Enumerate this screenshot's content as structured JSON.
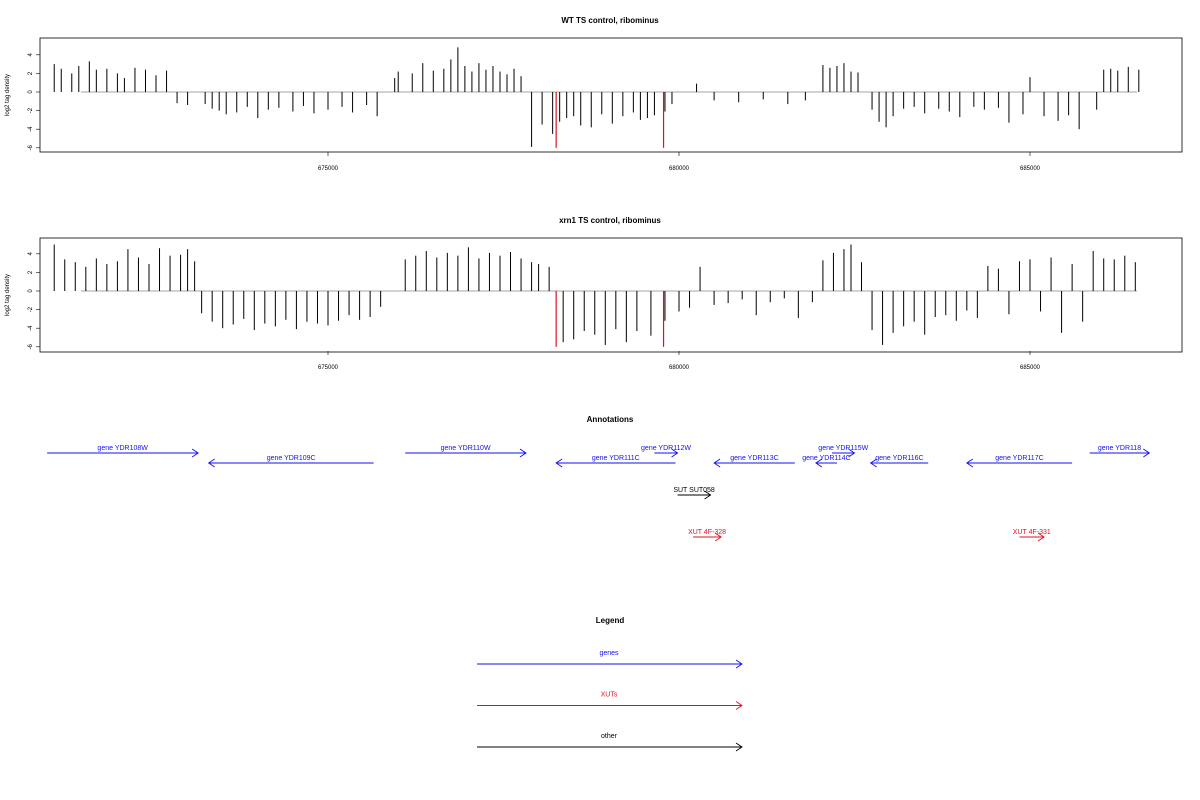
{
  "chart_data": [
    {
      "type": "bar",
      "title": "WT TS control, ribominus",
      "ylabel": "log2 tag density",
      "xlabel": "",
      "xlim": [
        671000,
        686700
      ],
      "ylim": [
        -6,
        5
      ],
      "yticks": [
        -6,
        -4,
        -2,
        0,
        2,
        4
      ],
      "xticks": [
        675000,
        680000,
        685000
      ],
      "xtick_labels": [
        "675000",
        "680000",
        "685000"
      ],
      "grid": false,
      "series": [
        {
          "name": "",
          "color": "#000000",
          "x": [
            671100,
            671200,
            671350,
            671450,
            671600,
            671700,
            671850,
            672000,
            672100,
            672250,
            672400,
            672550,
            672700,
            672850,
            673000,
            673250,
            673350,
            673450,
            673550,
            673700,
            673850,
            674000,
            674150,
            674300,
            674500,
            674650,
            674800,
            675000,
            675200,
            675350,
            675550,
            675700,
            675950,
            676000,
            676200,
            676350,
            676500,
            676650,
            676750,
            676850,
            676950,
            677050,
            677150,
            677250,
            677350,
            677450,
            677550,
            677650,
            677750,
            677900,
            678050,
            678200,
            678300,
            678400,
            678500,
            678600,
            678750,
            678900,
            679050,
            679200,
            679350,
            679450,
            679550,
            679650,
            679800,
            679900,
            680250,
            680500,
            680850,
            681200,
            681550,
            681800,
            682050,
            682150,
            682250,
            682350,
            682450,
            682550,
            682750,
            682850,
            682950,
            683050,
            683200,
            683350,
            683500,
            683700,
            683850,
            684000,
            684200,
            684350,
            684550,
            684700,
            684900,
            685000,
            685200,
            685400,
            685550,
            685700,
            685950,
            686050,
            686150,
            686250,
            686400,
            686550
          ],
          "values": [
            3,
            2.5,
            2,
            2.8,
            3.3,
            2.4,
            2.5,
            2,
            1.5,
            2.6,
            2.4,
            1.8,
            2.3,
            -1.2,
            -1.4,
            -1.3,
            -1.8,
            -2,
            -2.4,
            -2.2,
            -1.6,
            -2.8,
            -1.9,
            -1.7,
            -2.1,
            -1.5,
            -2.3,
            -1.9,
            -1.6,
            -2.2,
            -1.4,
            -2.6,
            1.5,
            2.2,
            2,
            3.1,
            2.3,
            2.5,
            3.5,
            4.8,
            2.8,
            2.2,
            3.1,
            2.4,
            2.8,
            2.2,
            1.9,
            2.5,
            1.7,
            -5.9,
            -3.5,
            -4.5,
            -3.2,
            -2.8,
            -2.6,
            -3.6,
            -3.8,
            -2.4,
            -3.4,
            -2.6,
            -2.2,
            -3,
            -2.8,
            -2.5,
            -2.1,
            -1.3,
            0.9,
            -0.9,
            -1.1,
            -0.8,
            -1.3,
            -0.9,
            2.9,
            2.6,
            2.8,
            3.1,
            2.2,
            2.1,
            -1.9,
            -3.2,
            -3.8,
            -2.6,
            -1.8,
            -1.6,
            -2.3,
            -1.8,
            -2.1,
            -2.7,
            -1.6,
            -1.9,
            -1.7,
            -3.3,
            -2.4,
            1.6,
            -2.6,
            -3.1,
            -2.5,
            -4,
            -1.9,
            2.4,
            2.5,
            2.3,
            2.7,
            2.4
          ]
        },
        {
          "name": "",
          "color": "#e01020",
          "x": [
            678250,
            679780
          ],
          "values": [
            -6,
            -6
          ]
        }
      ]
    },
    {
      "type": "bar",
      "title": "xrn1 TS control, ribominus",
      "ylabel": "log2 tag density",
      "xlabel": "",
      "xlim": [
        671000,
        686700
      ],
      "ylim": [
        -6,
        5
      ],
      "yticks": [
        -6,
        -4,
        -2,
        0,
        2,
        4
      ],
      "xticks": [
        675000,
        680000,
        685000
      ],
      "xtick_labels": [
        "675000",
        "680000",
        "685000"
      ],
      "grid": false,
      "series": [
        {
          "name": "",
          "color": "#000000",
          "x": [
            671100,
            671250,
            671400,
            671550,
            671700,
            671850,
            672000,
            672150,
            672300,
            672450,
            672600,
            672750,
            672900,
            673000,
            673100,
            673200,
            673350,
            673500,
            673650,
            673800,
            673950,
            674100,
            674250,
            674400,
            674550,
            674700,
            674850,
            675000,
            675150,
            675300,
            675450,
            675600,
            675750,
            676100,
            676250,
            676400,
            676550,
            676700,
            676850,
            677000,
            677150,
            677300,
            677450,
            677600,
            677750,
            677900,
            678000,
            678150,
            678350,
            678500,
            678650,
            678800,
            678950,
            679100,
            679250,
            679400,
            679600,
            679800,
            680000,
            680150,
            680300,
            680500,
            680700,
            680900,
            681100,
            681300,
            681500,
            681700,
            681900,
            682050,
            682200,
            682350,
            682450,
            682600,
            682750,
            682900,
            683050,
            683200,
            683350,
            683500,
            683650,
            683800,
            683950,
            684100,
            684250,
            684400,
            684550,
            684700,
            684850,
            685000,
            685150,
            685300,
            685450,
            685600,
            685750,
            685900,
            686050,
            686200,
            686350,
            686500
          ],
          "values": [
            5,
            3.4,
            3.1,
            2.6,
            3.5,
            2.9,
            3.2,
            4.5,
            3.6,
            2.9,
            4.6,
            3.8,
            3.9,
            4.5,
            3.2,
            -2.4,
            -3.3,
            -4,
            -3.6,
            -3,
            -4.2,
            -3.5,
            -3.8,
            -3.1,
            -4.1,
            -3.3,
            -3.5,
            -3.7,
            -3.2,
            -2.6,
            -3.1,
            -2.8,
            -1.7,
            3.4,
            3.8,
            4.3,
            3.6,
            4.1,
            3.8,
            4.7,
            3.5,
            4.1,
            3.8,
            4.2,
            3.5,
            3.1,
            2.9,
            2.6,
            -5.5,
            -5.2,
            -4.3,
            -4.7,
            -5.8,
            -4.1,
            -5.5,
            -4.3,
            -4.8,
            -3.2,
            -2.2,
            -1.8,
            2.6,
            -1.5,
            -1.3,
            -0.9,
            -2.6,
            -1.2,
            -0.8,
            -2.9,
            -1.2,
            3.3,
            4.1,
            4.5,
            5,
            3.1,
            -4.2,
            -5.8,
            -4.5,
            -3.8,
            -3.3,
            -4.7,
            -2.8,
            -2.6,
            -3.2,
            -2.1,
            -2.9,
            2.7,
            2.4,
            -2.5,
            3.2,
            3.4,
            -2.2,
            3.6,
            -4.5,
            2.9,
            -3.3,
            4.3,
            3.5,
            3.4,
            3.8,
            3.1
          ]
        },
        {
          "name": "",
          "color": "#e01020",
          "x": [
            678250,
            679780
          ],
          "values": [
            -6,
            -6
          ]
        }
      ]
    },
    {
      "type": "annotation-track",
      "title": "Annotations",
      "xlim": [
        671000,
        686700
      ],
      "features": [
        {
          "label": "gene YDR108W",
          "type": "gene",
          "strand": "+",
          "start": 671000,
          "end": 673150,
          "row": 0
        },
        {
          "label": "gene YDR109C",
          "type": "gene",
          "strand": "-",
          "start": 673300,
          "end": 675650,
          "row": 1
        },
        {
          "label": "gene YDR110W",
          "type": "gene",
          "strand": "+",
          "start": 676100,
          "end": 677820,
          "row": 0
        },
        {
          "label": "gene YDR111C",
          "type": "gene",
          "strand": "-",
          "start": 678250,
          "end": 679950,
          "row": 1
        },
        {
          "label": "gene YDR112W",
          "type": "gene",
          "strand": "+",
          "start": 679650,
          "end": 679980,
          "row": 0
        },
        {
          "label": "gene YDR113C",
          "type": "gene",
          "strand": "-",
          "start": 680500,
          "end": 681650,
          "row": 1
        },
        {
          "label": "gene YDR114C",
          "type": "gene",
          "strand": "-",
          "start": 681950,
          "end": 682250,
          "row": 1
        },
        {
          "label": "gene YDR115W",
          "type": "gene",
          "strand": "+",
          "start": 682180,
          "end": 682500,
          "row": 0
        },
        {
          "label": "gene YDR116C",
          "type": "gene",
          "strand": "-",
          "start": 682730,
          "end": 683550,
          "row": 1
        },
        {
          "label": "gene YDR117C",
          "type": "gene",
          "strand": "-",
          "start": 684100,
          "end": 685600,
          "row": 1
        },
        {
          "label": "gene YDR118",
          "type": "gene",
          "strand": "+",
          "start": 685850,
          "end": 686700,
          "row": 0
        },
        {
          "label": "SUT SUT058",
          "type": "other",
          "strand": "+",
          "start": 679980,
          "end": 680450,
          "row": 2
        },
        {
          "label": "XUT 4F-328",
          "type": "xut",
          "strand": "+",
          "start": 680200,
          "end": 680600,
          "row": 3
        },
        {
          "label": "XUT 4F-331",
          "type": "xut",
          "strand": "+",
          "start": 684850,
          "end": 685200,
          "row": 3
        }
      ]
    },
    {
      "type": "legend",
      "title": "Legend",
      "entries": [
        {
          "label": "genes",
          "color": "#1010f0"
        },
        {
          "label": "XUTs",
          "color": "#e01020"
        },
        {
          "label": "other",
          "color": "#000000"
        }
      ]
    }
  ]
}
